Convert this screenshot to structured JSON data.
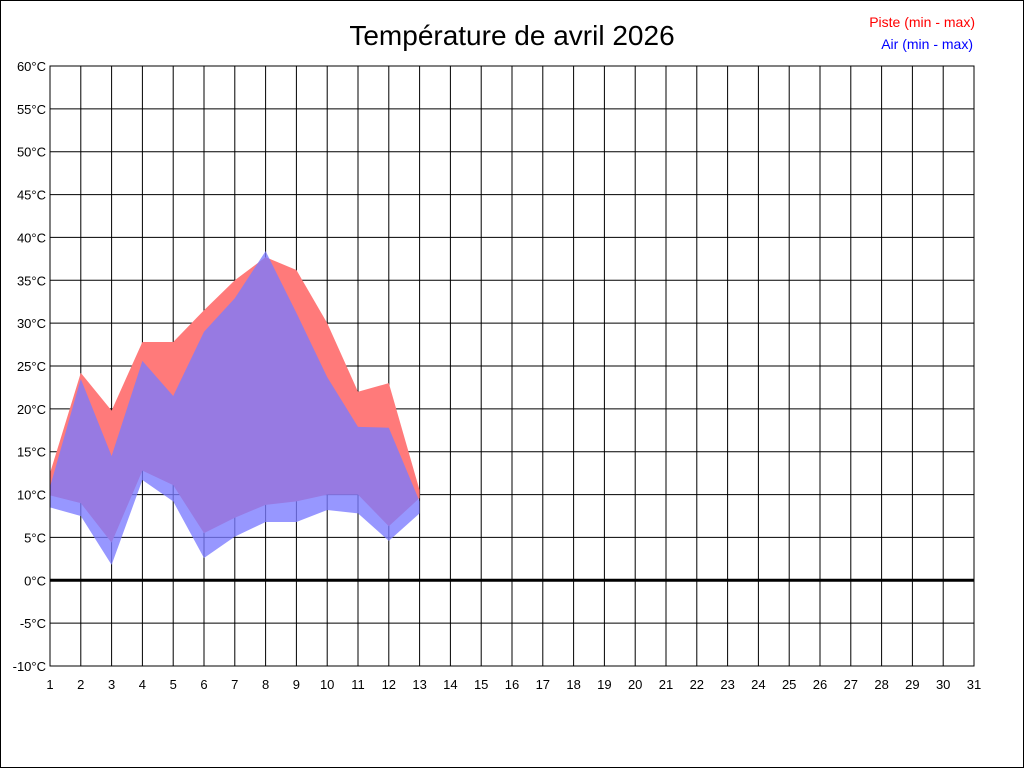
{
  "chart_data": {
    "type": "area",
    "title": "Température de avril 2026",
    "xlabel": "",
    "ylabel": "",
    "x_ticks": [
      "1",
      "2",
      "3",
      "4",
      "5",
      "6",
      "7",
      "8",
      "9",
      "10",
      "11",
      "12",
      "13",
      "14",
      "15",
      "16",
      "17",
      "18",
      "19",
      "20",
      "21",
      "22",
      "23",
      "24",
      "25",
      "26",
      "27",
      "28",
      "29",
      "30",
      "31"
    ],
    "y_ticks": [
      "60°C",
      "55°C",
      "50°C",
      "45°C",
      "40°C",
      "35°C",
      "30°C",
      "25°C",
      "20°C",
      "15°C",
      "10°C",
      "5°C",
      "0°C",
      "-5°C",
      "-10°C"
    ],
    "xlim": [
      1,
      31
    ],
    "ylim": [
      -10,
      60
    ],
    "grid": true,
    "legend_position": "top-right",
    "x": [
      1,
      2,
      3,
      4,
      5,
      6,
      7,
      8,
      9,
      10,
      11,
      12,
      13
    ],
    "series": [
      {
        "name": "Piste (min - max)",
        "color": "#ff0000",
        "fill": "#ff7a7a",
        "min": [
          9.9,
          9.0,
          4.4,
          12.8,
          11.1,
          5.5,
          7.3,
          8.8,
          9.2,
          10.0,
          10.0,
          6.3,
          9.6
        ],
        "max": [
          12.5,
          24.2,
          19.8,
          27.8,
          27.8,
          31.5,
          35.0,
          37.7,
          36.2,
          30.0,
          22.0,
          23.0,
          10.5
        ]
      },
      {
        "name": "Air (min - max)",
        "color": "#0000ff",
        "fill": "#7a7aff",
        "min": [
          8.5,
          7.5,
          1.8,
          11.7,
          9.2,
          2.6,
          5.1,
          6.8,
          6.8,
          8.2,
          7.8,
          4.6,
          7.8
        ],
        "max": [
          10.9,
          23.5,
          14.5,
          25.6,
          21.5,
          29.0,
          32.9,
          38.4,
          31.2,
          23.7,
          17.9,
          17.8,
          9.2
        ]
      }
    ]
  }
}
